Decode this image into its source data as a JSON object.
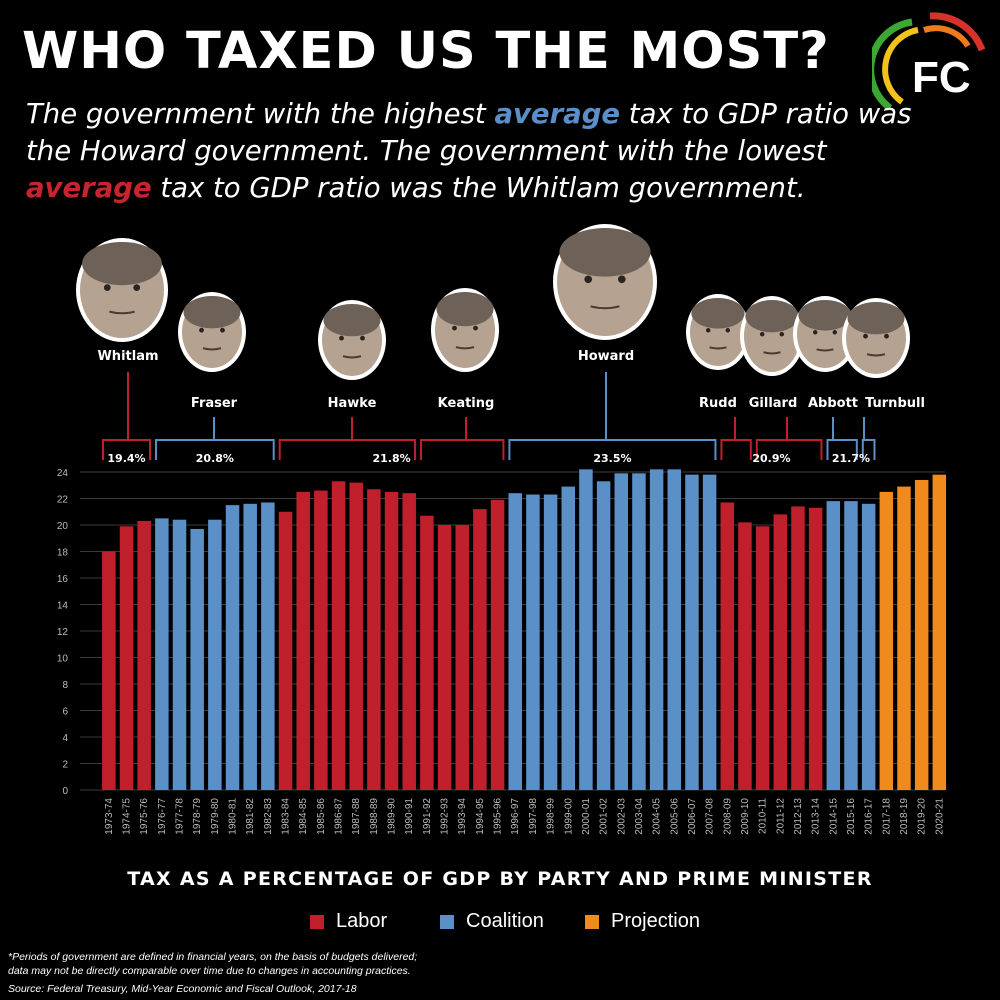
{
  "title": "WHO TAXED US THE MOST?",
  "logo": {
    "text": "FC"
  },
  "subtitle": {
    "part1": "The government with the highest ",
    "highlight1": "average",
    "part2": " tax to GDP ratio was the Howard government. The government with the lowest ",
    "highlight2": "average",
    "part3": " tax to GDP ratio was the Whitlam government."
  },
  "colors": {
    "labor": "#c0202c",
    "coalition": "#5b8fc7",
    "projection": "#f08a1c",
    "background": "#000000",
    "gridline": "#3a3a3a",
    "axis_text": "#bbbbbb"
  },
  "chart_data": {
    "type": "bar",
    "title": "TAX AS A PERCENTAGE OF GDP BY PARTY AND PRIME MINISTER",
    "xlabel": "",
    "ylabel": "",
    "ylim": [
      0,
      24
    ],
    "yticks": [
      0,
      2,
      4,
      6,
      8,
      10,
      12,
      14,
      16,
      18,
      20,
      22,
      24
    ],
    "grid": true,
    "categories": [
      "1973-74",
      "1974-75",
      "1975-76",
      "1976-77",
      "1977-78",
      "1978-79",
      "1979-80",
      "1980-81",
      "1981-82",
      "1982-83",
      "1983-84",
      "1984-85",
      "1985-86",
      "1986-87",
      "1987-88",
      "1988-89",
      "1989-90",
      "1990-91",
      "1991-92",
      "1992-93",
      "1993-94",
      "1994-95",
      "1995-96",
      "1996-97",
      "1997-98",
      "1998-99",
      "1999-00",
      "2000-01",
      "2001-02",
      "2002-03",
      "2003-04",
      "2004-05",
      "2005-06",
      "2006-07",
      "2007-08",
      "2008-09",
      "2009-10",
      "2010-11",
      "2011-12",
      "2012-13",
      "2013-14",
      "2014-15",
      "2015-16",
      "2016-17",
      "2017-18",
      "2018-19",
      "2019-20",
      "2020-21"
    ],
    "values": [
      18.0,
      19.9,
      20.3,
      20.5,
      20.4,
      19.7,
      20.4,
      21.5,
      21.6,
      21.7,
      21.0,
      22.5,
      22.6,
      23.3,
      23.2,
      22.7,
      22.5,
      22.4,
      20.7,
      20.0,
      20.0,
      21.2,
      21.9,
      22.4,
      22.3,
      22.3,
      22.9,
      24.2,
      23.3,
      23.9,
      23.9,
      24.2,
      24.2,
      23.8,
      23.8,
      21.7,
      20.2,
      19.9,
      20.8,
      21.4,
      21.3,
      21.8,
      21.8,
      21.6,
      22.5,
      22.9,
      23.4,
      23.8
    ],
    "party": [
      "labor",
      "labor",
      "labor",
      "coalition",
      "coalition",
      "coalition",
      "coalition",
      "coalition",
      "coalition",
      "coalition",
      "labor",
      "labor",
      "labor",
      "labor",
      "labor",
      "labor",
      "labor",
      "labor",
      "labor",
      "labor",
      "labor",
      "labor",
      "labor",
      "coalition",
      "coalition",
      "coalition",
      "coalition",
      "coalition",
      "coalition",
      "coalition",
      "coalition",
      "coalition",
      "coalition",
      "coalition",
      "coalition",
      "labor",
      "labor",
      "labor",
      "labor",
      "labor",
      "labor",
      "coalition",
      "coalition",
      "coalition",
      "projection",
      "projection",
      "projection",
      "projection"
    ],
    "governments": [
      {
        "pm": "Whitlam",
        "party": "labor",
        "start": 0,
        "end": 2,
        "average": "19.4%"
      },
      {
        "pm": "Fraser",
        "party": "coalition",
        "start": 3,
        "end": 9,
        "average": "20.8%"
      },
      {
        "pm": "Hawke",
        "party": "labor",
        "start": 10,
        "end": 17,
        "average": "21.8%"
      },
      {
        "pm": "Keating",
        "party": "labor",
        "start": 18,
        "end": 22,
        "average": ""
      },
      {
        "pm": "Howard",
        "party": "coalition",
        "start": 23,
        "end": 34,
        "average": "23.5%"
      },
      {
        "pm": "Rudd",
        "party": "labor",
        "start": 35,
        "end": 36,
        "average": "20.9%"
      },
      {
        "pm": "Gillard",
        "party": "labor",
        "start": 37,
        "end": 40,
        "average": ""
      },
      {
        "pm": "Abbott",
        "party": "coalition",
        "start": 41,
        "end": 42,
        "average": "21.7%"
      },
      {
        "pm": "Turnbull",
        "party": "coalition",
        "start": 43,
        "end": 43,
        "average": ""
      }
    ],
    "average_labels": [
      {
        "text": "19.4%",
        "from": 0,
        "to": 2
      },
      {
        "text": "20.8%",
        "from": 3,
        "to": 9
      },
      {
        "text": "21.8%",
        "from": 10,
        "to": 22
      },
      {
        "text": "23.5%",
        "from": 23,
        "to": 34
      },
      {
        "text": "20.9%",
        "from": 35,
        "to": 40
      },
      {
        "text": "21.7%",
        "from": 41,
        "to": 43
      }
    ],
    "legend": [
      {
        "label": "Labor",
        "key": "labor"
      },
      {
        "label": "Coalition",
        "key": "coalition"
      },
      {
        "label": "Projection",
        "key": "projection"
      }
    ]
  },
  "footnote": {
    "line1": "*Periods of government are defined in financial years, on the basis of budgets delivered;",
    "line2": " data may not be directly comparable over time due to changes in accounting practices."
  },
  "source": "Source: Federal Treasury, Mid-Year Economic and Fiscal Outlook, 2017-18"
}
